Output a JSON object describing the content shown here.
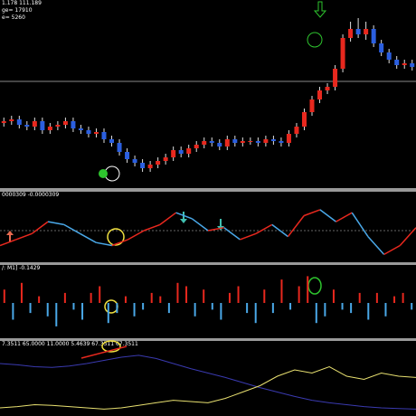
{
  "header_lines": [
    "1.178 111.189",
    "ge= 17910",
    "e= 5260"
  ],
  "chart_data": [
    {
      "type": "candlestick",
      "up_color": "#e8281e",
      "down_color": "#2b5fe0",
      "ylim": [
        0,
        100
      ],
      "open": [
        34,
        35,
        36,
        33,
        32,
        35,
        30,
        32,
        33,
        35,
        31,
        30,
        28,
        29,
        25,
        23,
        18,
        14,
        12,
        9,
        11,
        13,
        15,
        19,
        17,
        20,
        22,
        24,
        23,
        21,
        25,
        23,
        24,
        24,
        23,
        25,
        24,
        23,
        28,
        32,
        40,
        47,
        52,
        54,
        64,
        81,
        86,
        83,
        86,
        78,
        73,
        69,
        66,
        67
      ],
      "high": [
        37,
        38,
        38,
        35,
        37,
        37,
        34,
        35,
        37,
        37,
        33,
        32,
        31,
        31,
        27,
        25,
        20,
        16,
        14,
        13,
        15,
        17,
        21,
        21,
        22,
        24,
        26,
        26,
        25,
        27,
        27,
        26,
        26,
        26,
        27,
        27,
        26,
        30,
        34,
        42,
        49,
        54,
        56,
        66,
        83,
        90,
        92,
        90,
        88,
        80,
        75,
        71,
        69,
        69
      ],
      "low": [
        32,
        33,
        31,
        30,
        30,
        28,
        28,
        30,
        31,
        29,
        28,
        26,
        26,
        23,
        21,
        16,
        12,
        10,
        7,
        7,
        9,
        11,
        13,
        15,
        15,
        18,
        20,
        21,
        19,
        19,
        21,
        21,
        22,
        21,
        21,
        22,
        21,
        21,
        26,
        30,
        38,
        45,
        50,
        52,
        62,
        79,
        81,
        80,
        76,
        71,
        67,
        64,
        64,
        63
      ],
      "close": [
        35,
        36,
        33,
        32,
        35,
        30,
        32,
        33,
        35,
        31,
        30,
        28,
        29,
        25,
        23,
        18,
        14,
        12,
        9,
        11,
        13,
        15,
        19,
        17,
        20,
        22,
        24,
        23,
        21,
        25,
        23,
        24,
        24,
        23,
        25,
        24,
        23,
        28,
        32,
        40,
        47,
        52,
        54,
        64,
        81,
        86,
        83,
        86,
        78,
        73,
        69,
        66,
        67,
        65
      ]
    },
    {
      "type": "line",
      "title": "0000309 -0.0000309",
      "up_color": "#e8281e",
      "down_color": "#4aa8e8",
      "ylim": [
        -1,
        1
      ],
      "values": [
        -0.5,
        -0.3,
        -0.1,
        0.3,
        0.2,
        -0.1,
        -0.4,
        -0.5,
        -0.3,
        0.0,
        0.2,
        0.6,
        0.4,
        0.0,
        0.1,
        -0.3,
        -0.1,
        0.2,
        -0.2,
        0.5,
        0.7,
        0.3,
        0.6,
        -0.2,
        -0.8,
        -0.5,
        0.1
      ]
    },
    {
      "type": "bar",
      "title": "/: M1] -0.1429",
      "up_color": "#e8281e",
      "down_color": "#4aa8e8",
      "ylim": [
        -1,
        1
      ],
      "values": [
        0.4,
        -0.5,
        0.6,
        -0.3,
        0.2,
        -0.4,
        -0.7,
        0.3,
        -0.2,
        -0.5,
        0.3,
        0.5,
        -0.6,
        -0.3,
        0.2,
        -0.4,
        -0.2,
        0.3,
        0.2,
        -0.3,
        0.6,
        0.5,
        -0.4,
        0.4,
        -0.2,
        -0.5,
        0.3,
        0.5,
        -0.3,
        -0.6,
        0.4,
        -0.3,
        0.7,
        -0.2,
        0.5,
        0.8,
        -0.6,
        -0.4,
        0.4,
        -0.2,
        -0.3,
        0.3,
        -0.5,
        0.3,
        -0.4,
        0.2,
        0.3,
        -0.2
      ]
    },
    {
      "type": "line",
      "title": "7.3511 65.0000 11.0000 5.4639 67.3511 67.3511",
      "ylim": [
        0,
        100
      ],
      "series": [
        {
          "color": "#3a3ab0",
          "values": [
            80,
            78,
            75,
            74,
            76,
            80,
            85,
            90,
            93,
            88,
            80,
            72,
            65,
            58,
            50,
            42,
            35,
            28,
            22,
            18,
            15,
            12,
            10,
            9,
            8
          ]
        },
        {
          "color": "#e8e070",
          "values": [
            10,
            12,
            15,
            14,
            12,
            10,
            8,
            10,
            14,
            18,
            22,
            20,
            18,
            25,
            35,
            45,
            60,
            70,
            65,
            75,
            60,
            55,
            65,
            60,
            58
          ]
        }
      ]
    }
  ]
}
